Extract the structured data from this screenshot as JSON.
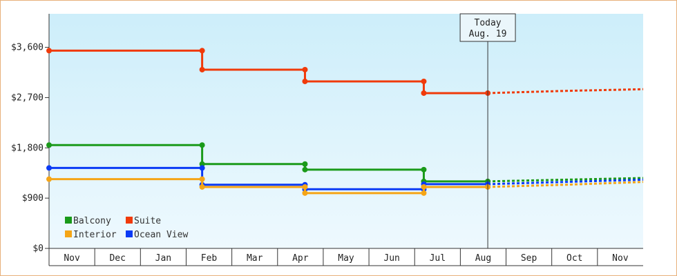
{
  "chart_data": {
    "type": "line",
    "y_ticks": [
      "$0",
      "$900",
      "$1,800",
      "$2,700",
      "$3,600"
    ],
    "y_tick_values": [
      0,
      900,
      1800,
      2700,
      3600
    ],
    "ylim": [
      0,
      4200
    ],
    "months": [
      "Nov",
      "Dec",
      "Jan",
      "Feb",
      "Mar",
      "Apr",
      "May",
      "Jun",
      "Jul",
      "Aug",
      "Sep",
      "Oct",
      "Nov"
    ],
    "x_range": [
      0,
      13
    ],
    "today": {
      "label": "Today",
      "date": "Aug. 19",
      "x": 9.6
    },
    "colors": {
      "Balcony": "#1a9a1a",
      "Suite": "#f03a0a",
      "Interior": "#f5a516",
      "Ocean View": "#0a3af5",
      "plot_top": "#cdeefa",
      "plot_bottom": "#eef9fe"
    },
    "legend": [
      {
        "label": "Balcony",
        "color": "#1a9a1a"
      },
      {
        "label": "Suite",
        "color": "#f03a0a"
      },
      {
        "label": "Interior",
        "color": "#f5a516"
      },
      {
        "label": "Ocean View",
        "color": "#0a3af5"
      }
    ],
    "series": [
      {
        "name": "Suite",
        "color": "#f03a0a",
        "points": [
          [
            0,
            3540
          ],
          [
            3.35,
            3540
          ],
          [
            3.35,
            3200
          ],
          [
            5.6,
            3200
          ],
          [
            5.6,
            2990
          ],
          [
            8.2,
            2990
          ],
          [
            8.2,
            2780
          ],
          [
            9.6,
            2780
          ]
        ],
        "projection": [
          [
            9.6,
            2780
          ],
          [
            11.3,
            2820
          ],
          [
            13,
            2850
          ]
        ]
      },
      {
        "name": "Balcony",
        "color": "#1a9a1a",
        "points": [
          [
            0,
            1850
          ],
          [
            3.35,
            1850
          ],
          [
            3.35,
            1510
          ],
          [
            5.6,
            1510
          ],
          [
            5.6,
            1410
          ],
          [
            8.2,
            1410
          ],
          [
            8.2,
            1200
          ],
          [
            9.6,
            1200
          ]
        ],
        "projection": [
          [
            9.6,
            1200
          ],
          [
            11.3,
            1230
          ],
          [
            13,
            1260
          ]
        ]
      },
      {
        "name": "Ocean View",
        "color": "#0a3af5",
        "points": [
          [
            0,
            1440
          ],
          [
            3.35,
            1440
          ],
          [
            3.35,
            1140
          ],
          [
            5.6,
            1140
          ],
          [
            5.6,
            1060
          ],
          [
            8.2,
            1060
          ],
          [
            8.2,
            1150
          ],
          [
            9.6,
            1150
          ]
        ],
        "projection": [
          [
            9.6,
            1150
          ],
          [
            11.3,
            1190
          ],
          [
            13,
            1230
          ]
        ]
      },
      {
        "name": "Interior",
        "color": "#f5a516",
        "points": [
          [
            0,
            1240
          ],
          [
            3.35,
            1240
          ],
          [
            3.35,
            1100
          ],
          [
            5.6,
            1100
          ],
          [
            5.6,
            990
          ],
          [
            8.2,
            990
          ],
          [
            8.2,
            1100
          ],
          [
            9.6,
            1100
          ]
        ],
        "projection": [
          [
            9.6,
            1100
          ],
          [
            11.3,
            1140
          ],
          [
            13,
            1190
          ]
        ]
      }
    ]
  }
}
